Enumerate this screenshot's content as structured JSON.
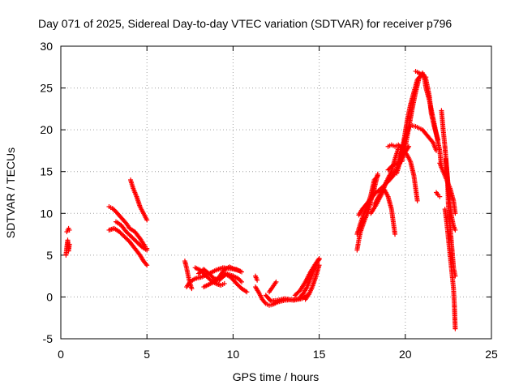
{
  "chart_data": {
    "type": "scatter",
    "title": "Day 071 of 2025, Sidereal Day-to-day VTEC variation (SDTVAR) for receiver p796",
    "xlabel": "GPS time / hours",
    "ylabel": "SDTVAR / TECUs",
    "xlim": [
      0,
      25
    ],
    "ylim": [
      -5,
      30
    ],
    "xticks": [
      0,
      5,
      10,
      15,
      20,
      25
    ],
    "yticks": [
      -5,
      0,
      5,
      10,
      15,
      20,
      25,
      30
    ],
    "grid": true,
    "marker": "plus",
    "color": "#ff0000",
    "segments": [
      [
        [
          0.35,
          7.8
        ],
        [
          0.45,
          8.2
        ],
        [
          0.5,
          8.0
        ]
      ],
      [
        [
          0.3,
          5.0
        ],
        [
          0.35,
          6.0
        ],
        [
          0.4,
          6.8
        ],
        [
          0.45,
          5.5
        ],
        [
          0.5,
          6.3
        ]
      ],
      [
        [
          2.8,
          10.8
        ],
        [
          3.0,
          10.6
        ],
        [
          3.2,
          10.2
        ],
        [
          3.5,
          9.5
        ],
        [
          3.8,
          8.8
        ],
        [
          4.0,
          8.2
        ],
        [
          4.3,
          7.8
        ],
        [
          4.6,
          7.0
        ],
        [
          4.9,
          6.0
        ],
        [
          5.0,
          5.8
        ]
      ],
      [
        [
          2.8,
          8.0
        ],
        [
          3.1,
          8.2
        ],
        [
          3.4,
          7.8
        ],
        [
          3.7,
          7.2
        ],
        [
          4.0,
          6.6
        ],
        [
          4.3,
          5.8
        ],
        [
          4.6,
          5.0
        ],
        [
          4.8,
          4.3
        ],
        [
          5.0,
          3.8
        ]
      ],
      [
        [
          3.2,
          9.0
        ],
        [
          3.5,
          8.6
        ],
        [
          3.8,
          7.8
        ],
        [
          4.1,
          7.2
        ],
        [
          4.4,
          6.6
        ],
        [
          4.7,
          6.0
        ],
        [
          5.0,
          5.6
        ]
      ],
      [
        [
          4.05,
          14.0
        ],
        [
          4.2,
          13.0
        ],
        [
          4.4,
          12.0
        ],
        [
          4.6,
          10.8
        ],
        [
          4.8,
          10.0
        ],
        [
          5.0,
          9.2
        ]
      ],
      [
        [
          7.2,
          4.3
        ],
        [
          7.3,
          3.5
        ],
        [
          7.4,
          2.5
        ],
        [
          7.5,
          1.6
        ],
        [
          7.6,
          1.0
        ]
      ],
      [
        [
          7.3,
          1.2
        ],
        [
          7.5,
          1.8
        ],
        [
          7.8,
          2.2
        ],
        [
          8.2,
          2.4
        ],
        [
          8.6,
          2.8
        ],
        [
          9.0,
          3.2
        ],
        [
          9.4,
          3.5
        ],
        [
          9.8,
          3.4
        ],
        [
          10.2,
          3.3
        ],
        [
          10.5,
          3.0
        ]
      ],
      [
        [
          7.8,
          3.5
        ],
        [
          8.1,
          3.2
        ],
        [
          8.4,
          2.6
        ],
        [
          8.7,
          2.0
        ],
        [
          9.0,
          1.6
        ],
        [
          9.3,
          1.4
        ],
        [
          9.5,
          1.6
        ]
      ],
      [
        [
          8.0,
          2.8
        ],
        [
          8.3,
          3.3
        ],
        [
          8.6,
          2.8
        ],
        [
          8.9,
          2.2
        ],
        [
          9.2,
          2.0
        ],
        [
          9.6,
          2.8
        ],
        [
          10.0,
          2.5
        ],
        [
          10.3,
          2.2
        ],
        [
          10.5,
          1.8
        ]
      ],
      [
        [
          8.3,
          1.2
        ],
        [
          8.6,
          1.5
        ],
        [
          8.9,
          1.8
        ],
        [
          9.2,
          2.4
        ],
        [
          9.5,
          3.3
        ],
        [
          9.8,
          3.6
        ],
        [
          10.1,
          3.3
        ],
        [
          10.4,
          3.1
        ]
      ],
      [
        [
          9.3,
          2.3
        ],
        [
          9.6,
          2.7
        ],
        [
          9.9,
          2.3
        ],
        [
          10.2,
          1.6
        ],
        [
          10.5,
          1.0
        ],
        [
          10.8,
          0.6
        ]
      ],
      [
        [
          11.3,
          2.5
        ],
        [
          11.4,
          2.0
        ]
      ],
      [
        [
          11.3,
          1.2
        ],
        [
          11.5,
          0.5
        ],
        [
          11.7,
          -0.3
        ],
        [
          11.9,
          -0.8
        ],
        [
          12.1,
          -1.0
        ],
        [
          12.3,
          -0.9
        ],
        [
          12.6,
          -0.6
        ],
        [
          13.0,
          -0.4
        ],
        [
          13.5,
          -0.3
        ],
        [
          13.9,
          -0.2
        ]
      ],
      [
        [
          12.1,
          0.6
        ],
        [
          12.3,
          1.2
        ],
        [
          12.5,
          1.8
        ]
      ],
      [
        [
          11.9,
          0.2
        ],
        [
          12.2,
          -0.5
        ],
        [
          12.6,
          -0.4
        ],
        [
          13.0,
          -0.2
        ],
        [
          13.5,
          -0.4
        ],
        [
          14.0,
          -0.2
        ],
        [
          14.3,
          0.2
        ]
      ],
      [
        [
          13.6,
          0.2
        ],
        [
          13.9,
          0.8
        ],
        [
          14.2,
          1.8
        ],
        [
          14.5,
          3.0
        ],
        [
          14.8,
          4.0
        ],
        [
          15.0,
          4.6
        ]
      ],
      [
        [
          13.9,
          0.0
        ],
        [
          14.1,
          0.5
        ],
        [
          14.3,
          1.2
        ],
        [
          14.5,
          2.2
        ],
        [
          14.7,
          3.3
        ],
        [
          14.9,
          4.2
        ],
        [
          15.0,
          4.5
        ]
      ],
      [
        [
          14.2,
          -0.3
        ],
        [
          14.4,
          0.3
        ],
        [
          14.6,
          1.2
        ],
        [
          14.8,
          2.4
        ],
        [
          15.0,
          3.8
        ]
      ],
      [
        [
          17.2,
          5.6
        ],
        [
          17.3,
          6.8
        ],
        [
          17.4,
          7.8
        ],
        [
          17.6,
          9.0
        ],
        [
          17.8,
          10.0
        ],
        [
          18.0,
          11.5
        ],
        [
          18.2,
          13.0
        ],
        [
          18.4,
          14.7
        ]
      ],
      [
        [
          17.2,
          7.5
        ],
        [
          17.4,
          8.8
        ],
        [
          17.6,
          10.0
        ],
        [
          17.8,
          10.8
        ],
        [
          18.0,
          12.2
        ],
        [
          18.2,
          14.0
        ],
        [
          18.4,
          14.5
        ]
      ],
      [
        [
          17.3,
          9.8
        ],
        [
          17.5,
          10.5
        ],
        [
          17.7,
          11.0
        ],
        [
          17.9,
          11.5
        ],
        [
          18.1,
          12.0
        ],
        [
          18.3,
          12.5
        ],
        [
          18.5,
          12.8
        ],
        [
          18.7,
          13.2
        ],
        [
          19.0,
          13.8
        ],
        [
          19.3,
          14.5
        ],
        [
          19.6,
          15.8
        ],
        [
          19.9,
          17.0
        ],
        [
          20.2,
          18.0
        ]
      ],
      [
        [
          18.2,
          11.0
        ],
        [
          18.4,
          11.8
        ],
        [
          18.6,
          12.5
        ],
        [
          18.8,
          12.8
        ],
        [
          19.0,
          12.0
        ],
        [
          19.2,
          10.5
        ],
        [
          19.3,
          9.0
        ],
        [
          19.4,
          7.5
        ]
      ],
      [
        [
          18.0,
          10.0
        ],
        [
          18.3,
          11.0
        ],
        [
          18.6,
          12.2
        ],
        [
          18.9,
          13.8
        ],
        [
          19.2,
          15.0
        ],
        [
          19.4,
          16.5
        ],
        [
          19.6,
          17.8
        ],
        [
          19.8,
          18.0
        ],
        [
          20.0,
          17.5
        ]
      ],
      [
        [
          19.0,
          18.0
        ],
        [
          19.2,
          18.2
        ],
        [
          19.4,
          18.0
        ],
        [
          19.6,
          18.2
        ],
        [
          19.8,
          17.8
        ],
        [
          20.1,
          17.0
        ],
        [
          20.3,
          16.2
        ],
        [
          20.5,
          14.5
        ],
        [
          20.6,
          13.0
        ],
        [
          20.7,
          11.5
        ]
      ],
      [
        [
          19.0,
          15.2
        ],
        [
          19.3,
          15.8
        ],
        [
          19.6,
          16.0
        ],
        [
          19.8,
          17.5
        ],
        [
          20.0,
          19.0
        ],
        [
          20.2,
          20.3
        ],
        [
          20.4,
          20.5
        ],
        [
          20.6,
          20.4
        ],
        [
          20.8,
          20.2
        ],
        [
          21.0,
          20.0
        ],
        [
          21.2,
          19.5
        ],
        [
          21.4,
          19.0
        ],
        [
          21.6,
          18.5
        ],
        [
          21.8,
          17.5
        ]
      ],
      [
        [
          19.5,
          14.8
        ],
        [
          19.7,
          16.2
        ],
        [
          19.9,
          18.5
        ],
        [
          20.1,
          21.0
        ],
        [
          20.3,
          23.0
        ],
        [
          20.5,
          24.5
        ],
        [
          20.7,
          26.0
        ],
        [
          20.9,
          26.5
        ],
        [
          21.1,
          26.3
        ],
        [
          21.2,
          25.0
        ],
        [
          21.4,
          23.5
        ],
        [
          21.6,
          21.5
        ],
        [
          21.8,
          19.5
        ],
        [
          22.0,
          17.5
        ],
        [
          22.1,
          15.5
        ]
      ],
      [
        [
          19.8,
          16.2
        ],
        [
          20.0,
          18.0
        ],
        [
          20.2,
          20.2
        ],
        [
          20.4,
          22.5
        ],
        [
          20.6,
          24.5
        ],
        [
          20.8,
          26.2
        ],
        [
          21.0,
          26.8
        ],
        [
          21.2,
          26.0
        ],
        [
          21.4,
          24.0
        ],
        [
          21.5,
          22.0
        ],
        [
          21.7,
          20.2
        ],
        [
          21.9,
          18.8
        ]
      ],
      [
        [
          20.6,
          27.0
        ],
        [
          20.8,
          26.8
        ],
        [
          21.0,
          26.4
        ],
        [
          21.2,
          26.3
        ]
      ],
      [
        [
          22.0,
          16.0
        ],
        [
          22.2,
          15.0
        ],
        [
          22.4,
          14.0
        ],
        [
          22.6,
          13.0
        ],
        [
          22.8,
          11.5
        ],
        [
          22.9,
          10.0
        ]
      ],
      [
        [
          22.1,
          22.3
        ],
        [
          22.2,
          20.0
        ],
        [
          22.3,
          18.0
        ],
        [
          22.4,
          15.5
        ],
        [
          22.5,
          13.0
        ],
        [
          22.6,
          11.0
        ],
        [
          22.7,
          9.5
        ],
        [
          22.8,
          8.5
        ],
        [
          22.9,
          8.0
        ]
      ],
      [
        [
          22.3,
          10.5
        ],
        [
          22.4,
          9.0
        ],
        [
          22.5,
          7.0
        ],
        [
          22.6,
          5.0
        ],
        [
          22.7,
          3.0
        ],
        [
          22.8,
          1.0
        ],
        [
          22.85,
          -1.0
        ],
        [
          22.9,
          -3.8
        ]
      ],
      [
        [
          22.35,
          16.5
        ],
        [
          22.45,
          14.0
        ],
        [
          22.5,
          11.0
        ],
        [
          22.6,
          8.5
        ],
        [
          22.7,
          6.0
        ],
        [
          22.8,
          3.5
        ],
        [
          22.9,
          2.5
        ]
      ],
      [
        [
          21.8,
          12.5
        ],
        [
          21.9,
          12.2
        ],
        [
          22.0,
          12.0
        ]
      ]
    ]
  }
}
